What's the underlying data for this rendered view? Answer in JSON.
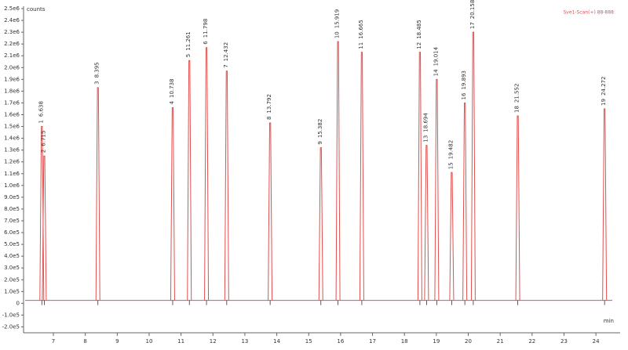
{
  "chart_data": {
    "type": "chromatogram",
    "y_label": "counts",
    "x_label": "min",
    "legend": "Sve1-Scan(+) 88-888",
    "color": "#e0504f",
    "xlim": [
      6.065,
      24.76
    ],
    "xticks": [
      7,
      8,
      9,
      10,
      11,
      12,
      13,
      14,
      15,
      16,
      17,
      18,
      19,
      20,
      21,
      22,
      23,
      24
    ],
    "ylim": [
      -250000,
      2520000
    ],
    "yticks": [
      {
        "value": 2500000,
        "label": "2.5e6"
      },
      {
        "value": 2400000,
        "label": "2.4e6"
      },
      {
        "value": 2300000,
        "label": "2.3e6"
      },
      {
        "value": 2200000,
        "label": "2.2e6"
      },
      {
        "value": 2100000,
        "label": "2.1e6"
      },
      {
        "value": 2000000,
        "label": "2.0e6"
      },
      {
        "value": 1900000,
        "label": "1.9e6"
      },
      {
        "value": 1800000,
        "label": "1.8e6"
      },
      {
        "value": 1700000,
        "label": "1.7e6"
      },
      {
        "value": 1600000,
        "label": "1.6e6"
      },
      {
        "value": 1500000,
        "label": "1.5e6"
      },
      {
        "value": 1400000,
        "label": "1.4e6"
      },
      {
        "value": 1300000,
        "label": "1.3e6"
      },
      {
        "value": 1200000,
        "label": "1.2e6"
      },
      {
        "value": 1100000,
        "label": "1.1e6"
      },
      {
        "value": 1000000,
        "label": "1.0e6"
      },
      {
        "value": 900000,
        "label": "9.0e5"
      },
      {
        "value": 800000,
        "label": "8.0e5"
      },
      {
        "value": 700000,
        "label": "7.0e5"
      },
      {
        "value": 600000,
        "label": "6.0e5"
      },
      {
        "value": 500000,
        "label": "5.0e5"
      },
      {
        "value": 400000,
        "label": "4.0e5"
      },
      {
        "value": 300000,
        "label": "3.0e5"
      },
      {
        "value": 200000,
        "label": "2.0e5"
      },
      {
        "value": 100000,
        "label": "1.0e5"
      },
      0,
      {
        "value": -100000,
        "label": "-1.0e5"
      },
      {
        "value": -200000,
        "label": "-2.0e5"
      }
    ],
    "baseline": 25000,
    "peak_numbers": [
      1,
      2,
      3,
      4,
      5,
      6,
      7,
      8,
      9,
      10,
      11,
      12,
      13,
      14,
      15,
      16,
      17,
      18,
      19
    ],
    "x": [
      6.638,
      6.715,
      8.395,
      10.738,
      11.261,
      11.798,
      12.432,
      13.792,
      15.382,
      15.919,
      16.665,
      18.485,
      18.694,
      19.014,
      19.482,
      19.893,
      20.158,
      21.552,
      24.272
    ],
    "values": [
      1500000,
      1250000,
      1830000,
      1660000,
      2060000,
      2170000,
      1970000,
      1530000,
      1320000,
      2220000,
      2130000,
      2130000,
      1340000,
      1900000,
      1110000,
      1700000,
      2300000,
      1590000,
      1650000
    ]
  }
}
